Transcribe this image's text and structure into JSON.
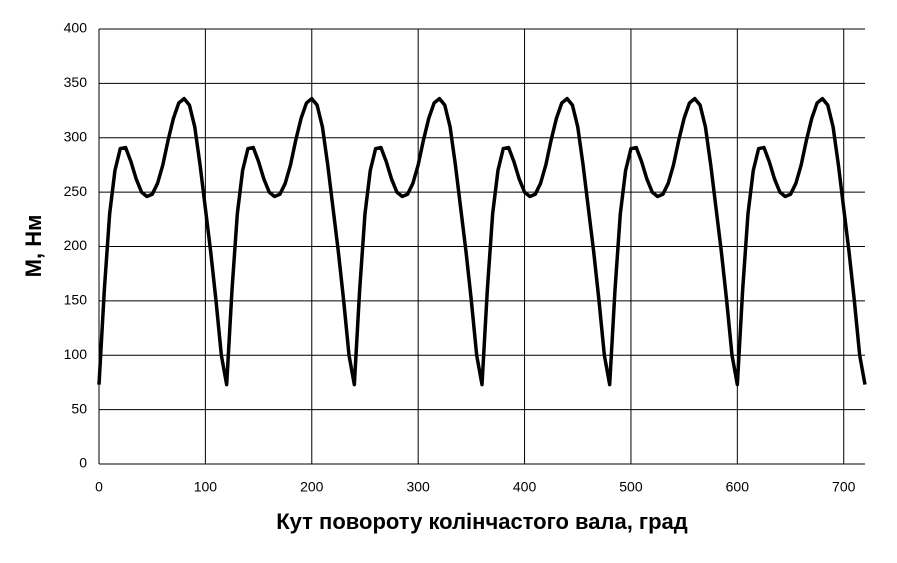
{
  "chart_data": {
    "type": "line",
    "xlabel": "Кут повороту колінчастого вала, град",
    "ylabel": "М, Нм",
    "x": [
      0,
      5,
      10,
      15,
      20,
      25,
      30,
      35,
      40,
      45,
      50,
      55,
      60,
      65,
      70,
      75,
      80,
      85,
      90,
      95,
      100,
      105,
      110,
      115,
      120,
      125,
      130,
      135,
      140,
      145,
      150,
      155,
      160,
      165,
      170,
      175,
      180,
      185,
      190,
      195,
      200,
      205,
      210,
      215,
      220,
      225,
      230,
      235,
      240,
      245,
      250,
      255,
      260,
      265,
      270,
      275,
      280,
      285,
      290,
      295,
      300,
      305,
      310,
      315,
      320,
      325,
      330,
      335,
      340,
      345,
      350,
      355,
      360,
      365,
      370,
      375,
      380,
      385,
      390,
      395,
      400,
      405,
      410,
      415,
      420,
      425,
      430,
      435,
      440,
      445,
      450,
      455,
      460,
      465,
      470,
      475,
      480,
      485,
      490,
      495,
      500,
      505,
      510,
      515,
      520,
      525,
      530,
      535,
      540,
      545,
      550,
      555,
      560,
      565,
      570,
      575,
      580,
      585,
      590,
      595,
      600,
      605,
      610,
      615,
      620,
      625,
      630,
      635,
      640,
      645,
      650,
      655,
      660,
      665,
      670,
      675,
      680,
      685,
      690,
      695,
      700,
      705,
      710,
      715,
      720
    ],
    "series": [
      {
        "name": "M",
        "color": "#000000",
        "values": [
          73,
          160,
          230,
          270,
          290,
          291,
          278,
          262,
          250,
          246,
          248,
          258,
          275,
          298,
          318,
          332,
          336,
          330,
          310,
          275,
          235,
          195,
          150,
          100,
          73,
          160,
          230,
          270,
          290,
          291,
          278,
          262,
          250,
          246,
          248,
          258,
          275,
          298,
          318,
          332,
          336,
          330,
          310,
          275,
          235,
          195,
          150,
          100,
          73,
          160,
          230,
          270,
          290,
          291,
          278,
          262,
          250,
          246,
          248,
          258,
          275,
          298,
          318,
          332,
          336,
          330,
          310,
          275,
          235,
          195,
          150,
          100,
          73,
          160,
          230,
          270,
          290,
          291,
          278,
          262,
          250,
          246,
          248,
          258,
          275,
          298,
          318,
          332,
          336,
          330,
          310,
          275,
          235,
          195,
          150,
          100,
          73,
          160,
          230,
          270,
          290,
          291,
          278,
          262,
          250,
          246,
          248,
          258,
          275,
          298,
          318,
          332,
          336,
          330,
          310,
          275,
          235,
          195,
          150,
          100,
          73,
          160,
          230,
          270,
          290,
          291,
          278,
          262,
          250,
          246,
          248,
          258,
          275,
          298,
          318,
          332,
          336,
          330,
          310,
          275,
          235,
          195,
          150,
          100,
          73
        ]
      }
    ],
    "xlim": [
      0,
      720
    ],
    "xticks": [
      0,
      100,
      200,
      300,
      400,
      500,
      600,
      700
    ],
    "ylim": [
      0,
      400
    ],
    "yticks": [
      0,
      50,
      100,
      150,
      200,
      250,
      300,
      350,
      400
    ],
    "grid": true
  }
}
